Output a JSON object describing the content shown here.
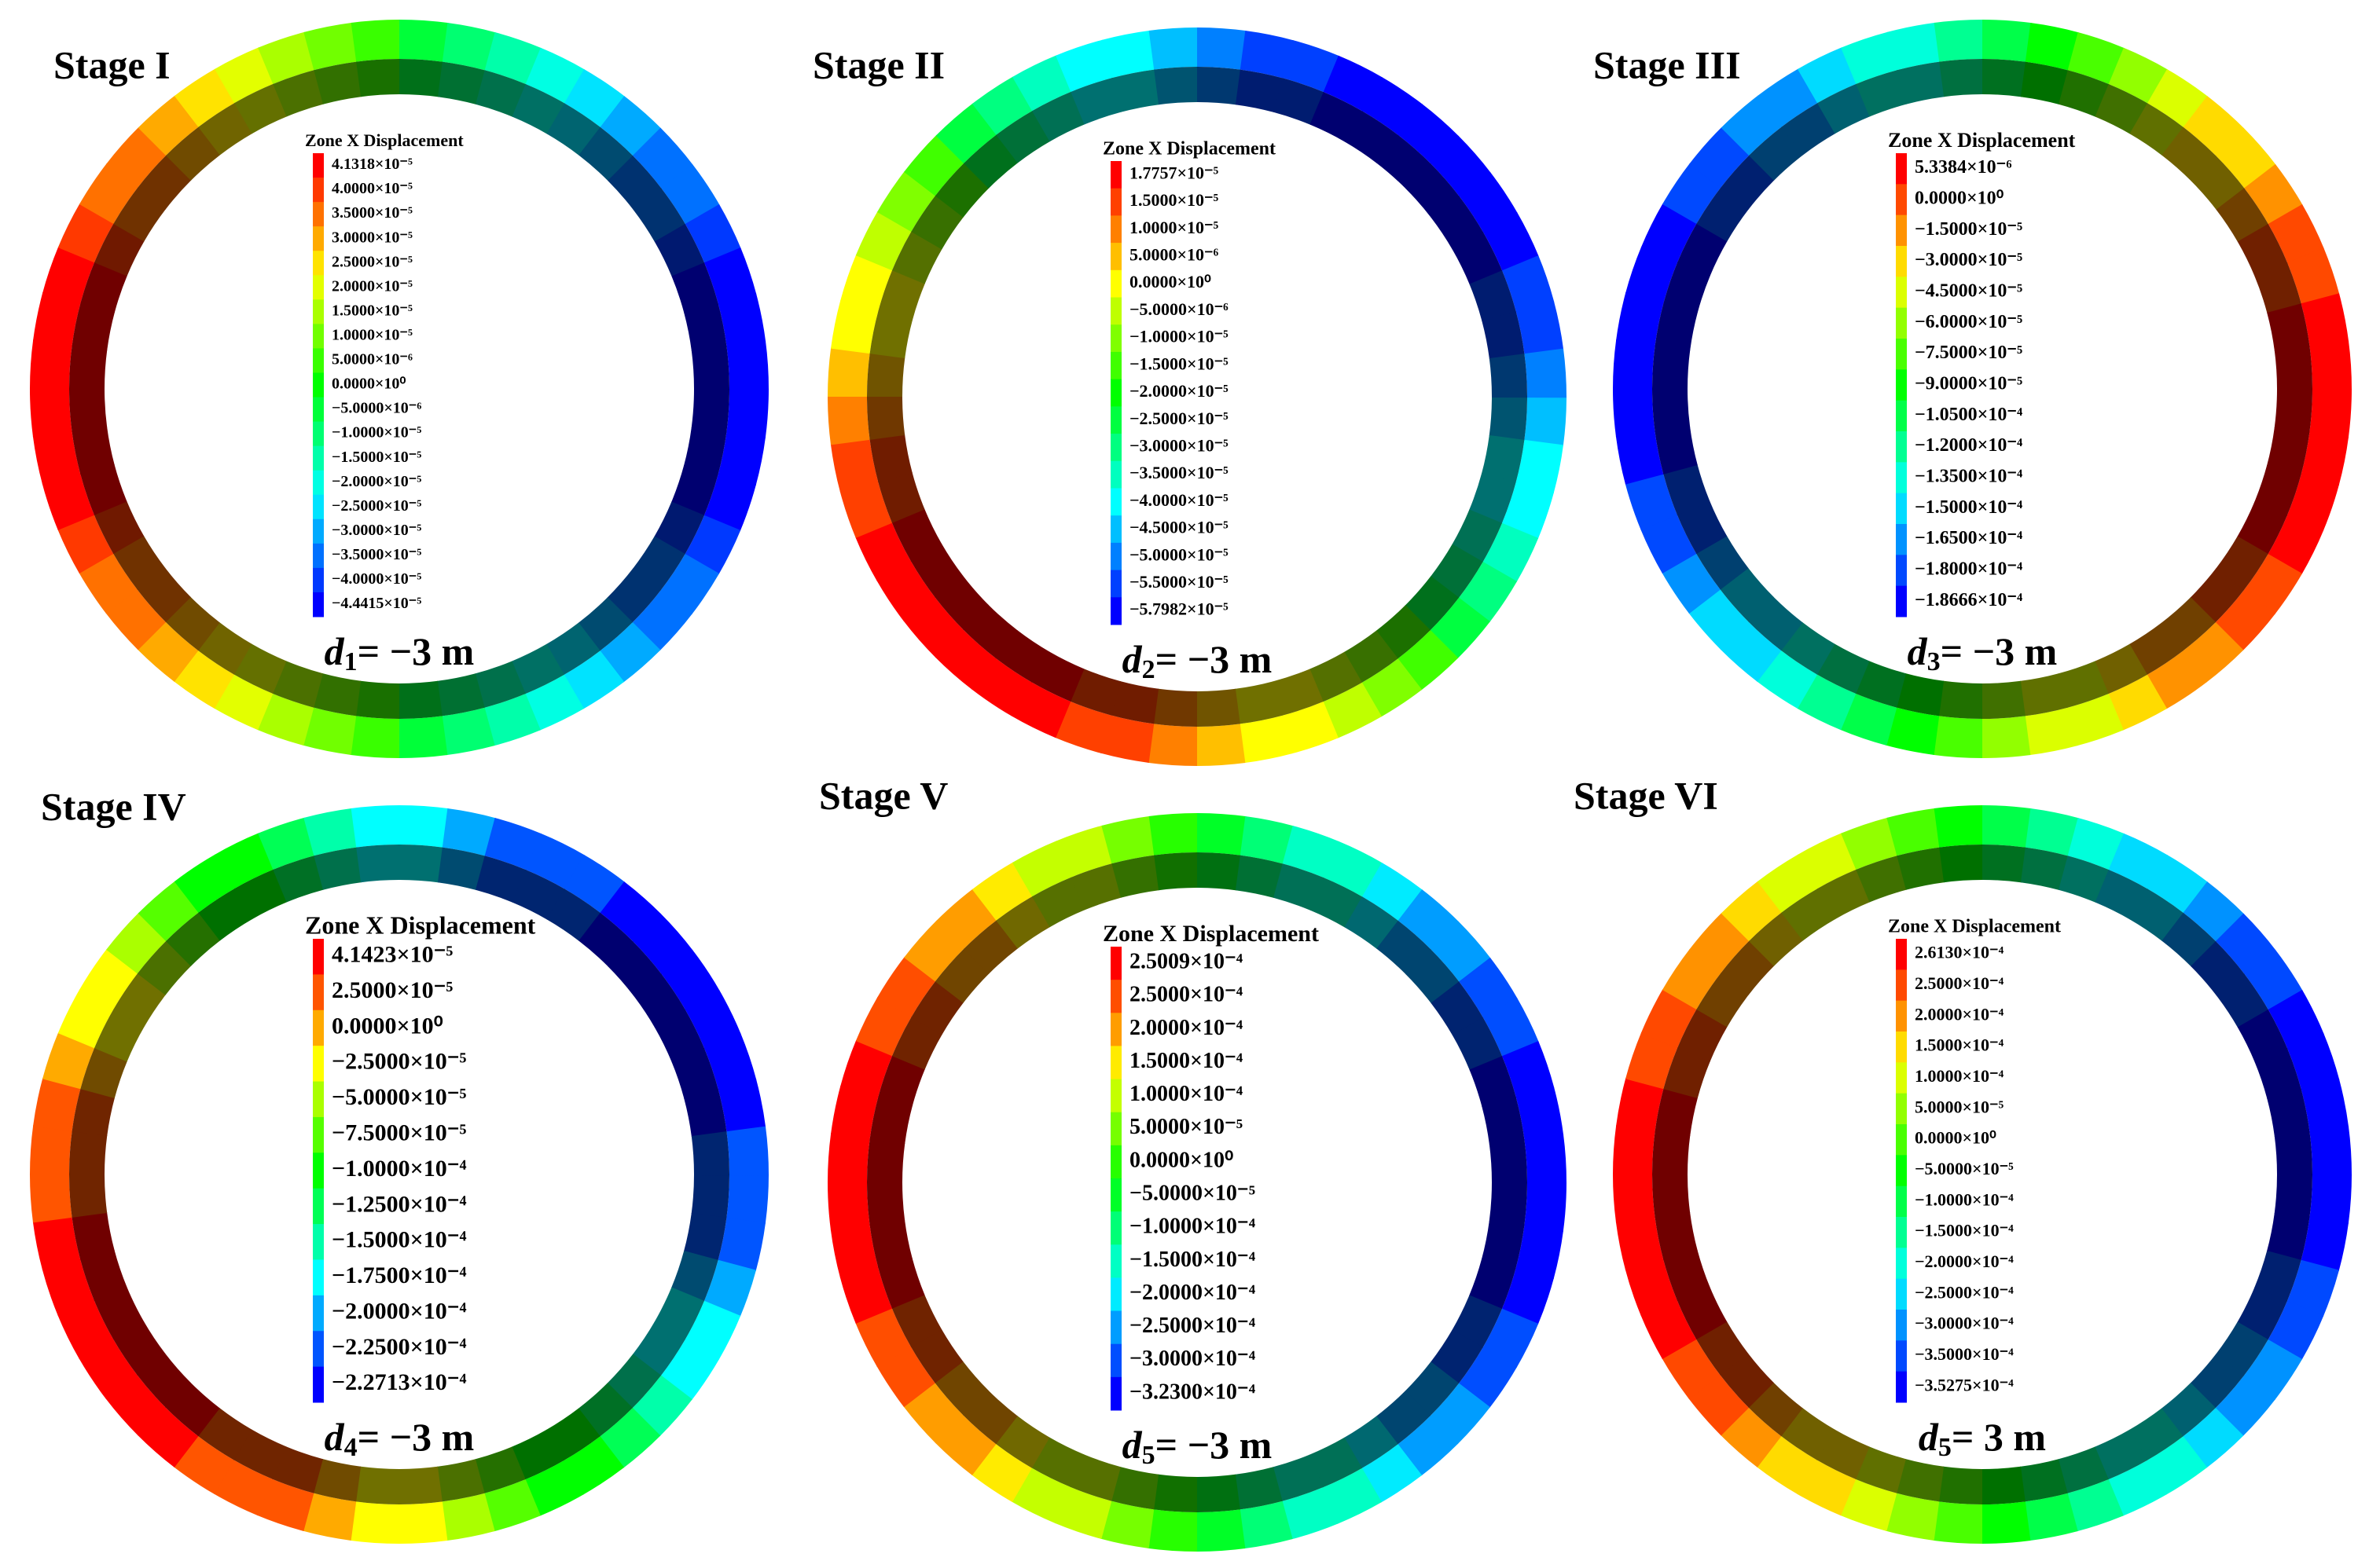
{
  "panels": [
    {
      "stage": "Stage I",
      "legend_title": "Zone X Displacement",
      "legend_labels": [
        "4.1318×10⁻⁵",
        "4.0000×10⁻⁵",
        "3.5000×10⁻⁵",
        "3.0000×10⁻⁵",
        "2.5000×10⁻⁵",
        "2.0000×10⁻⁵",
        "1.5000×10⁻⁵",
        "1.0000×10⁻⁵",
        "5.0000×10⁻⁶",
        "0.0000×10⁰",
        "−5.0000×10⁻⁶",
        "−1.0000×10⁻⁵",
        "−1.5000×10⁻⁵",
        "−2.0000×10⁻⁵",
        "−2.5000×10⁻⁵",
        "−3.0000×10⁻⁵",
        "−3.5000×10⁻⁵",
        "−4.0000×10⁻⁵",
        "−4.4415×10⁻⁵"
      ],
      "distance": {
        "symbol": "d",
        "subscript": "1",
        "text": "= −3 m"
      }
    },
    {
      "stage": "Stage II",
      "legend_title": "Zone X Displacement",
      "legend_labels": [
        "1.7757×10⁻⁵",
        "1.5000×10⁻⁵",
        "1.0000×10⁻⁵",
        "5.0000×10⁻⁶",
        "0.0000×10⁰",
        "−5.0000×10⁻⁶",
        "−1.0000×10⁻⁵",
        "−1.5000×10⁻⁵",
        "−2.0000×10⁻⁵",
        "−2.5000×10⁻⁵",
        "−3.0000×10⁻⁵",
        "−3.5000×10⁻⁵",
        "−4.0000×10⁻⁵",
        "−4.5000×10⁻⁵",
        "−5.0000×10⁻⁵",
        "−5.5000×10⁻⁵",
        "−5.7982×10⁻⁵"
      ],
      "distance": {
        "symbol": "d",
        "subscript": "2",
        "text": "= −3 m"
      }
    },
    {
      "stage": "Stage III",
      "legend_title": "Zone X Displacement",
      "legend_labels": [
        "5.3384×10⁻⁶",
        "0.0000×10⁰",
        "−1.5000×10⁻⁵",
        "−3.0000×10⁻⁵",
        "−4.5000×10⁻⁵",
        "−6.0000×10⁻⁵",
        "−7.5000×10⁻⁵",
        "−9.0000×10⁻⁵",
        "−1.0500×10⁻⁴",
        "−1.2000×10⁻⁴",
        "−1.3500×10⁻⁴",
        "−1.5000×10⁻⁴",
        "−1.6500×10⁻⁴",
        "−1.8000×10⁻⁴",
        "−1.8666×10⁻⁴"
      ],
      "distance": {
        "symbol": "d",
        "subscript": "3",
        "text": "= −3 m"
      }
    },
    {
      "stage": "Stage IV",
      "legend_title": "Zone X Displacement",
      "legend_labels": [
        "4.1423×10⁻⁵",
        "2.5000×10⁻⁵",
        "0.0000×10⁰",
        "−2.5000×10⁻⁵",
        "−5.0000×10⁻⁵",
        "−7.5000×10⁻⁵",
        "−1.0000×10⁻⁴",
        "−1.2500×10⁻⁴",
        "−1.5000×10⁻⁴",
        "−1.7500×10⁻⁴",
        "−2.0000×10⁻⁴",
        "−2.2500×10⁻⁴",
        "−2.2713×10⁻⁴"
      ],
      "distance": {
        "symbol": "d",
        "subscript": "4",
        "text": "= −3 m"
      }
    },
    {
      "stage": "Stage V",
      "legend_title": "Zone X Displacement",
      "legend_labels": [
        "2.5009×10⁻⁴",
        "2.5000×10⁻⁴",
        "2.0000×10⁻⁴",
        "1.5000×10⁻⁴",
        "1.0000×10⁻⁴",
        "5.0000×10⁻⁵",
        "0.0000×10⁰",
        "−5.0000×10⁻⁵",
        "−1.0000×10⁻⁴",
        "−1.5000×10⁻⁴",
        "−2.0000×10⁻⁴",
        "−2.5000×10⁻⁴",
        "−3.0000×10⁻⁴",
        "−3.2300×10⁻⁴"
      ],
      "distance": {
        "symbol": "d",
        "subscript": "5",
        "text": "= −3 m"
      }
    },
    {
      "stage": "Stage VI",
      "legend_title": "Zone X Displacement",
      "legend_labels": [
        "2.6130×10⁻⁴",
        "2.5000×10⁻⁴",
        "2.0000×10⁻⁴",
        "1.5000×10⁻⁴",
        "1.0000×10⁻⁴",
        "5.0000×10⁻⁵",
        "0.0000×10⁰",
        "−5.0000×10⁻⁵",
        "−1.0000×10⁻⁴",
        "−1.5000×10⁻⁴",
        "−2.0000×10⁻⁴",
        "−2.5000×10⁻⁴",
        "−3.0000×10⁻⁴",
        "−3.5000×10⁻⁴",
        "−3.5275×10⁻⁴"
      ],
      "distance": {
        "symbol": "d",
        "subscript": "5",
        "text": "= 3 m"
      }
    }
  ]
}
